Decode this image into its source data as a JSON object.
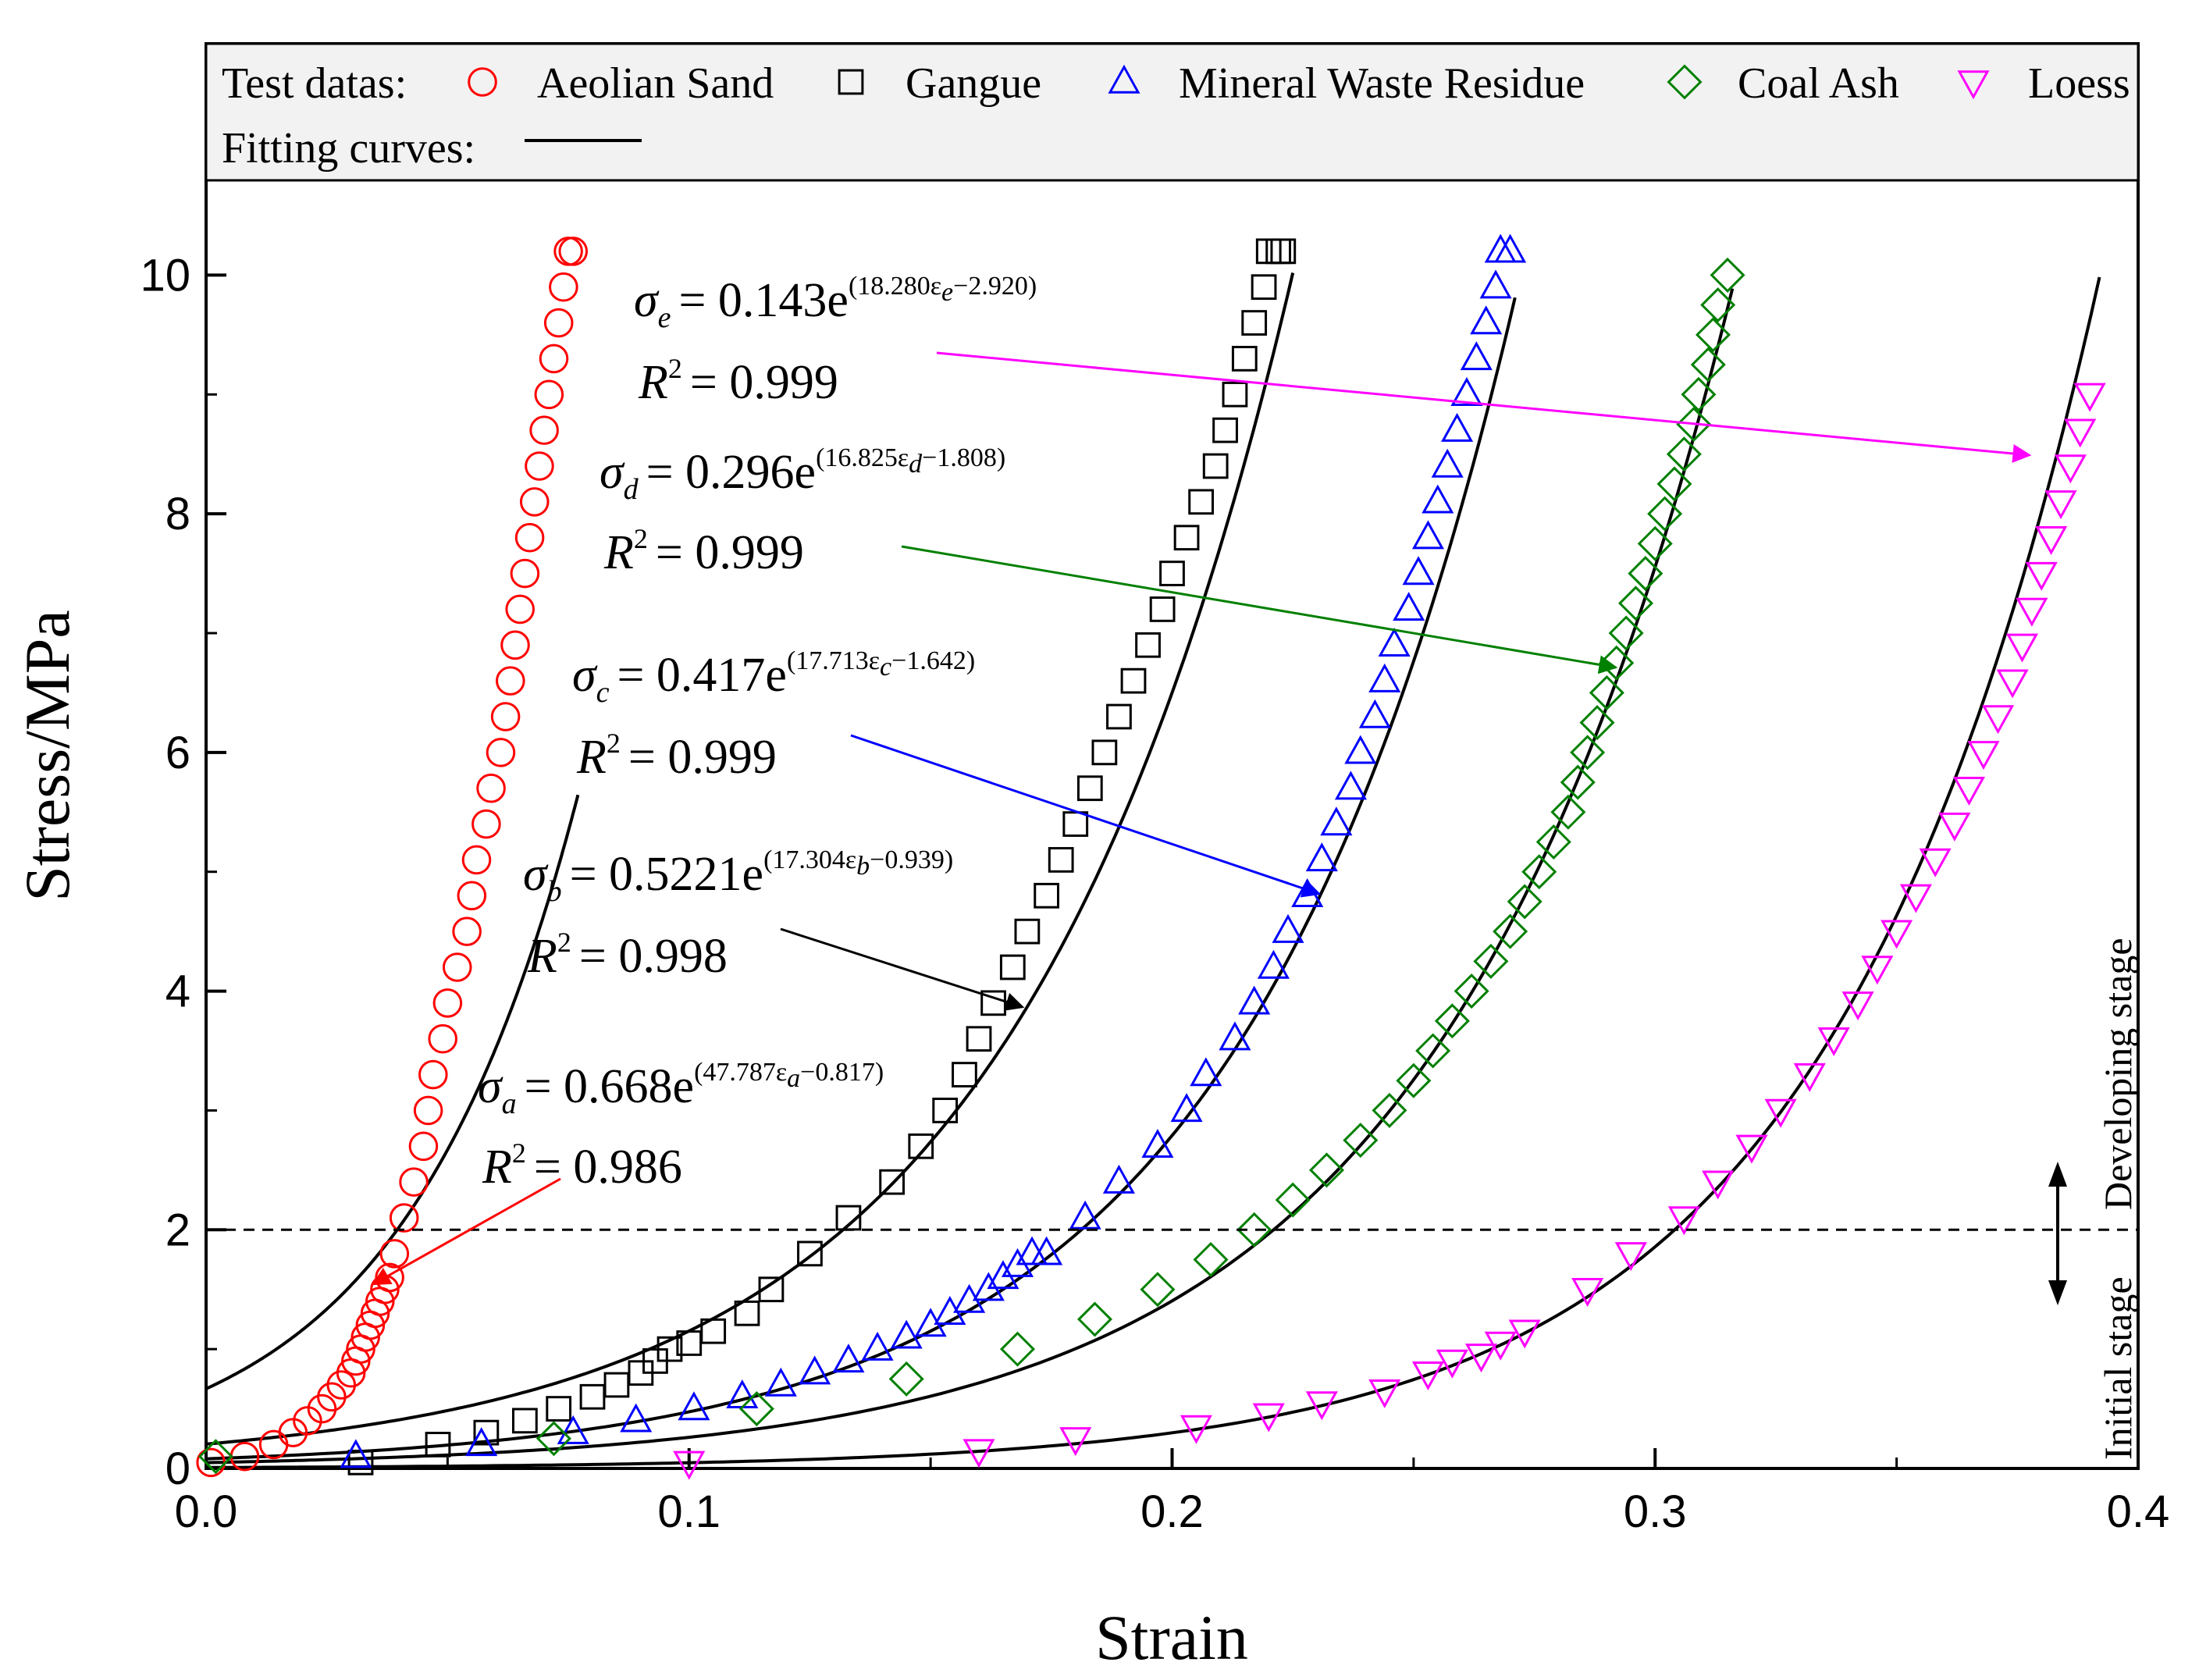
{
  "chart_data": {
    "type": "scatter",
    "title": "",
    "xlabel": "Strain",
    "ylabel": "Stress/MPa",
    "xlim": [
      0.0,
      0.4
    ],
    "ylim": [
      0,
      10.5
    ],
    "xticks": [
      "0.0",
      "0.1",
      "0.2",
      "0.3",
      "0.4"
    ],
    "yticks": [
      "0",
      "2",
      "4",
      "6",
      "8",
      "10"
    ],
    "grid": false,
    "legend": {
      "placement": "top",
      "test_label": "Test datas:",
      "fit_label": "Fitting curves:"
    },
    "series": [
      {
        "name": "Aeolian Sand",
        "marker": "circle",
        "color": "#ff0000",
        "x": [
          0.001,
          0.008,
          0.014,
          0.018,
          0.021,
          0.024,
          0.026,
          0.028,
          0.03,
          0.031,
          0.032,
          0.033,
          0.034,
          0.035,
          0.036,
          0.037,
          0.038,
          0.039,
          0.041,
          0.043,
          0.045,
          0.046,
          0.047,
          0.049,
          0.05,
          0.052,
          0.054,
          0.055,
          0.056,
          0.058,
          0.059,
          0.061,
          0.062,
          0.063,
          0.064,
          0.065,
          0.066,
          0.067,
          0.068,
          0.069,
          0.07,
          0.071,
          0.072,
          0.073,
          0.074,
          0.075,
          0.076
        ],
        "y": [
          0.05,
          0.1,
          0.2,
          0.3,
          0.4,
          0.5,
          0.6,
          0.7,
          0.8,
          0.9,
          1.0,
          1.1,
          1.2,
          1.3,
          1.4,
          1.5,
          1.6,
          1.8,
          2.1,
          2.4,
          2.7,
          3.0,
          3.3,
          3.6,
          3.9,
          4.2,
          4.5,
          4.8,
          5.1,
          5.4,
          5.7,
          6.0,
          6.3,
          6.6,
          6.9,
          7.2,
          7.5,
          7.8,
          8.1,
          8.4,
          8.7,
          9.0,
          9.3,
          9.6,
          9.9,
          10.2,
          10.2
        ]
      },
      {
        "name": "Gangue",
        "marker": "square",
        "color": "#000000",
        "x": [
          0.032,
          0.048,
          0.058,
          0.066,
          0.073,
          0.08,
          0.085,
          0.09,
          0.093,
          0.096,
          0.1,
          0.105,
          0.112,
          0.117,
          0.125,
          0.133,
          0.142,
          0.148,
          0.153,
          0.157,
          0.16,
          0.163,
          0.167,
          0.17,
          0.174,
          0.177,
          0.18,
          0.183,
          0.186,
          0.189,
          0.192,
          0.195,
          0.198,
          0.2,
          0.203,
          0.206,
          0.209,
          0.211,
          0.213,
          0.215,
          0.217,
          0.219,
          0.22,
          0.222,
          0.223
        ],
        "y": [
          0.05,
          0.2,
          0.3,
          0.4,
          0.5,
          0.6,
          0.7,
          0.8,
          0.9,
          1.0,
          1.05,
          1.15,
          1.3,
          1.5,
          1.8,
          2.1,
          2.4,
          2.7,
          3.0,
          3.3,
          3.6,
          3.9,
          4.2,
          4.5,
          4.8,
          5.1,
          5.4,
          5.7,
          6.0,
          6.3,
          6.6,
          6.9,
          7.2,
          7.5,
          7.8,
          8.1,
          8.4,
          8.7,
          9.0,
          9.3,
          9.6,
          9.9,
          10.2,
          10.2,
          10.2
        ]
      },
      {
        "name": "Mineral Waste Residue",
        "marker": "triangle-up",
        "color": "#0000ff",
        "x": [
          0.031,
          0.057,
          0.076,
          0.089,
          0.101,
          0.111,
          0.119,
          0.126,
          0.133,
          0.139,
          0.145,
          0.15,
          0.154,
          0.158,
          0.162,
          0.165,
          0.168,
          0.171,
          0.174,
          0.182,
          0.189,
          0.197,
          0.203,
          0.207,
          0.213,
          0.217,
          0.221,
          0.224,
          0.228,
          0.231,
          0.234,
          0.237,
          0.239,
          0.242,
          0.244,
          0.246,
          0.249,
          0.251,
          0.253,
          0.255,
          0.257,
          0.259,
          0.261,
          0.263,
          0.265,
          0.267,
          0.268,
          0.27
        ],
        "y": [
          0.1,
          0.2,
          0.3,
          0.4,
          0.5,
          0.6,
          0.7,
          0.8,
          0.9,
          1.0,
          1.1,
          1.2,
          1.3,
          1.4,
          1.5,
          1.6,
          1.7,
          1.8,
          1.8,
          2.1,
          2.4,
          2.7,
          3.0,
          3.3,
          3.6,
          3.9,
          4.2,
          4.5,
          4.8,
          5.1,
          5.4,
          5.7,
          6.0,
          6.3,
          6.6,
          6.9,
          7.2,
          7.5,
          7.8,
          8.1,
          8.4,
          8.7,
          9.0,
          9.3,
          9.6,
          9.9,
          10.2,
          10.2
        ]
      },
      {
        "name": "Coal Ash",
        "marker": "diamond",
        "color": "#008000",
        "x": [
          0.002,
          0.072,
          0.114,
          0.145,
          0.168,
          0.184,
          0.197,
          0.208,
          0.217,
          0.225,
          0.232,
          0.239,
          0.245,
          0.25,
          0.254,
          0.258,
          0.262,
          0.266,
          0.27,
          0.273,
          0.276,
          0.279,
          0.282,
          0.284,
          0.286,
          0.288,
          0.29,
          0.292,
          0.294,
          0.296,
          0.298,
          0.3,
          0.302,
          0.304,
          0.306,
          0.308,
          0.309,
          0.311,
          0.312,
          0.313,
          0.315
        ],
        "y": [
          0.1,
          0.25,
          0.5,
          0.75,
          1.0,
          1.25,
          1.5,
          1.75,
          2.0,
          2.25,
          2.5,
          2.75,
          3.0,
          3.25,
          3.5,
          3.75,
          4.0,
          4.25,
          4.5,
          4.75,
          5.0,
          5.25,
          5.5,
          5.75,
          6.0,
          6.25,
          6.5,
          6.75,
          7.0,
          7.25,
          7.5,
          7.75,
          8.0,
          8.25,
          8.5,
          8.75,
          9.0,
          9.25,
          9.5,
          9.75,
          10.0
        ]
      },
      {
        "name": "Loess",
        "marker": "triangle-down",
        "color": "#ff00ff",
        "x": [
          0.1,
          0.16,
          0.18,
          0.205,
          0.22,
          0.231,
          0.244,
          0.253,
          0.258,
          0.264,
          0.268,
          0.273,
          0.286,
          0.295,
          0.306,
          0.313,
          0.32,
          0.326,
          0.332,
          0.337,
          0.342,
          0.346,
          0.35,
          0.354,
          0.358,
          0.362,
          0.365,
          0.368,
          0.371,
          0.374,
          0.376,
          0.378,
          0.38,
          0.382,
          0.384,
          0.386,
          0.388,
          0.39
        ],
        "y": [
          0.05,
          0.15,
          0.25,
          0.35,
          0.45,
          0.55,
          0.65,
          0.8,
          0.9,
          0.95,
          1.05,
          1.15,
          1.5,
          1.8,
          2.1,
          2.4,
          2.7,
          3.0,
          3.3,
          3.6,
          3.9,
          4.2,
          4.5,
          4.8,
          5.1,
          5.4,
          5.7,
          6.0,
          6.3,
          6.6,
          6.9,
          7.2,
          7.5,
          7.8,
          8.1,
          8.4,
          8.7,
          9.0
        ]
      }
    ],
    "fits": [
      {
        "label": "σa",
        "sub": "a",
        "coef": 0.668,
        "k": 47.787,
        "b": -0.817,
        "r2": "0.986",
        "eq_prefix": "= 0.668e",
        "exponent": "(47.787ε",
        "exponent_tail": "−0.817)",
        "r2_text": "= 0.986"
      },
      {
        "label": "σb",
        "sub": "b",
        "coef": 0.5221,
        "k": 17.304,
        "b": -0.939,
        "r2": "0.998",
        "eq_prefix": "= 0.5221e",
        "exponent": "(17.304ε",
        "exponent_tail": "−0.939)",
        "r2_text": "= 0.998"
      },
      {
        "label": "σc",
        "sub": "c",
        "coef": 0.417,
        "k": 17.713,
        "b": -1.642,
        "r2": "0.999",
        "eq_prefix": "= 0.417e",
        "exponent": "(17.713ε",
        "exponent_tail": "−1.642)",
        "r2_text": "= 0.999"
      },
      {
        "label": "σd",
        "sub": "d",
        "coef": 0.296,
        "k": 16.825,
        "b": -1.808,
        "r2": "0.999",
        "eq_prefix": "= 0.296e",
        "exponent": "(16.825ε",
        "exponent_tail": "−1.808)",
        "r2_text": "= 0.999"
      },
      {
        "label": "σe",
        "sub": "e",
        "coef": 0.143,
        "k": 18.28,
        "b": -2.92,
        "r2": "0.999",
        "eq_prefix": "= 0.143e",
        "exponent": "(18.280ε",
        "exponent_tail": "−2.920)",
        "r2_text": "= 0.999"
      }
    ],
    "annotations": {
      "threshold": 2,
      "initial_stage": "Initial stage",
      "developing_stage": "Developing stage"
    }
  }
}
